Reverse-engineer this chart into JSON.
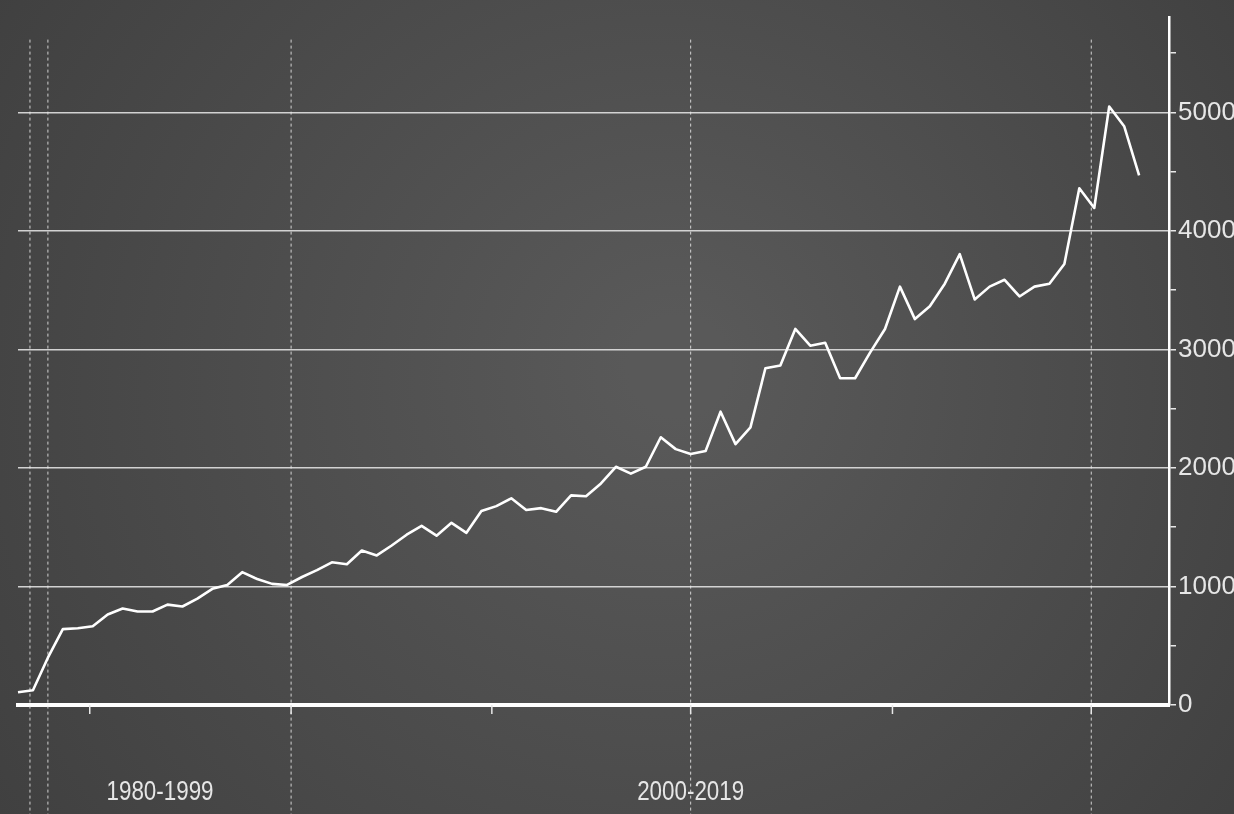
{
  "chart_data": {
    "type": "line",
    "categories": [
      null,
      null,
      null,
      null,
      null,
      null,
      null,
      null,
      null,
      null,
      null,
      null,
      null,
      null,
      null,
      null,
      null,
      null,
      null,
      null,
      null,
      null,
      null,
      null,
      null,
      null,
      null,
      null,
      null,
      null,
      null,
      null,
      null,
      null,
      null,
      null,
      null,
      null,
      null,
      null,
      null,
      null,
      null,
      null,
      null,
      null,
      null,
      null,
      null,
      null,
      null,
      null,
      null,
      null,
      null,
      null,
      null,
      null,
      null,
      null,
      null,
      null,
      null,
      null,
      null,
      null,
      null,
      null,
      null,
      null,
      null,
      null,
      null,
      null,
      null,
      null,
      null,
      null
    ],
    "series": [
      {
        "color": "#ffffff",
        "values": [
          108,
          125,
          399,
          640,
          648,
          664,
          764,
          814,
          789,
          789,
          847,
          831,
          897,
          980,
          1013,
          1121,
          1063,
          1022,
          1013,
          1080,
          1138,
          1204,
          1188,
          1304,
          1262,
          1346,
          1437,
          1512,
          1429,
          1537,
          1453,
          1636,
          1678,
          1744,
          1645,
          1661,
          1630,
          1769,
          1761,
          1869,
          2010,
          1952,
          2010,
          2259,
          2159,
          2118,
          2143,
          2475,
          2201,
          2342,
          2841,
          2865,
          3173,
          3032,
          3056,
          2757,
          2757,
          2973,
          3173,
          3530,
          3256,
          3364,
          3555,
          3804,
          3422,
          3530,
          3588,
          3447,
          3530,
          3555,
          3721,
          4360,
          4194,
          5050,
          4884,
          4468,
          null,
          null
        ]
      }
    ],
    "ylim": [
      0,
      5800
    ],
    "yticks": [
      0,
      {
        "value": 500,
        "label": null
      },
      1000,
      {
        "value": 1500,
        "label": null
      },
      2000,
      {
        "value": 2500,
        "label": null
      },
      3000,
      {
        "value": 3500,
        "label": null
      },
      4000,
      {
        "value": 4500,
        "label": null
      },
      5000,
      {
        "value": 5500,
        "label": null
      }
    ],
    "grid": "y",
    "legend": false,
    "marker": "none",
    "line_style": "solid",
    "annotations": [
      "1980-1999",
      "2000-2019"
    ]
  }
}
